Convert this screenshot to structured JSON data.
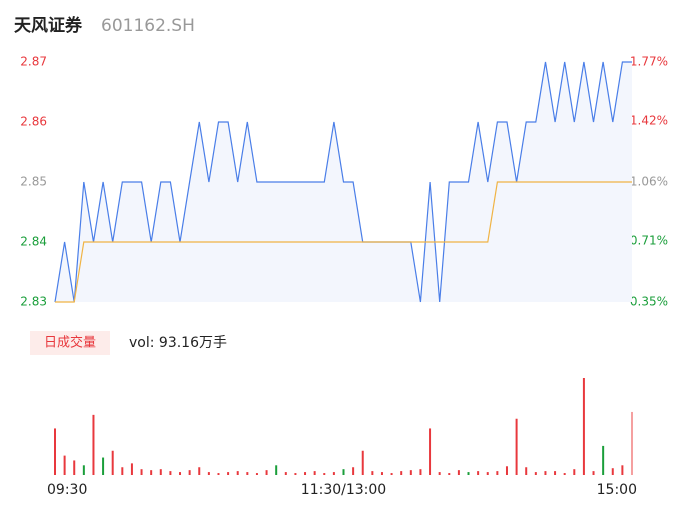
{
  "chart_data": [
    {
      "type": "line",
      "title": "天风证券",
      "subtitle": "601162.SH",
      "x": [
        0,
        4,
        8,
        12,
        16,
        20,
        24,
        28,
        32,
        36,
        40,
        44,
        48,
        52,
        56,
        60,
        64,
        68,
        72,
        76,
        80,
        84,
        88,
        92,
        96,
        100,
        104,
        108,
        112,
        116,
        120,
        124,
        128,
        132,
        136,
        140,
        144,
        148,
        152,
        156,
        160,
        164,
        168,
        172,
        176,
        180,
        184,
        188,
        192,
        196,
        200,
        204,
        208,
        212,
        216,
        220,
        224,
        228,
        232,
        236,
        240
      ],
      "series": [
        {
          "color": "#4a7ee8",
          "values": [
            2.83,
            2.84,
            2.83,
            2.85,
            2.84,
            2.85,
            2.84,
            2.85,
            2.85,
            2.85,
            2.84,
            2.85,
            2.85,
            2.84,
            2.85,
            2.86,
            2.85,
            2.86,
            2.86,
            2.85,
            2.86,
            2.85,
            2.85,
            2.85,
            2.85,
            2.85,
            2.85,
            2.85,
            2.85,
            2.86,
            2.85,
            2.85,
            2.84,
            2.84,
            2.84,
            2.84,
            2.84,
            2.84,
            2.83,
            2.85,
            2.83,
            2.85,
            2.85,
            2.85,
            2.86,
            2.85,
            2.86,
            2.86,
            2.85,
            2.86,
            2.86,
            2.87,
            2.86,
            2.87,
            2.86,
            2.87,
            2.86,
            2.87,
            2.86,
            2.87,
            2.87
          ]
        },
        {
          "color": "#f0b445",
          "values": [
            2.83,
            2.83,
            2.83,
            2.84,
            2.84,
            2.84,
            2.84,
            2.84,
            2.84,
            2.84,
            2.84,
            2.84,
            2.84,
            2.84,
            2.84,
            2.84,
            2.84,
            2.84,
            2.84,
            2.84,
            2.84,
            2.84,
            2.84,
            2.84,
            2.84,
            2.84,
            2.84,
            2.84,
            2.84,
            2.84,
            2.84,
            2.84,
            2.84,
            2.84,
            2.84,
            2.84,
            2.84,
            2.84,
            2.84,
            2.84,
            2.84,
            2.84,
            2.84,
            2.84,
            2.84,
            2.84,
            2.85,
            2.85,
            2.85,
            2.85,
            2.85,
            2.85,
            2.85,
            2.85,
            2.85,
            2.85,
            2.85,
            2.85,
            2.85,
            2.85,
            2.85
          ]
        }
      ],
      "fill": "#f3f6fd",
      "xlim": [
        0,
        240
      ],
      "ylim": [
        2.83,
        2.87
      ],
      "yticks": [
        2.83,
        2.84,
        2.85,
        2.86,
        2.87
      ],
      "ytick_colors": [
        "#1a9e3a",
        "#1a9e3a",
        "#999999",
        "#e8383d",
        "#e8383d"
      ],
      "y2lim": [
        0.35,
        1.77
      ],
      "y2ticks": [
        {
          "value": 0.35,
          "label": "0.35%"
        },
        {
          "value": 0.71,
          "label": "0.71%"
        },
        {
          "value": 1.06,
          "label": "1.06%"
        },
        {
          "value": 1.42,
          "label": "1.42%"
        },
        {
          "value": 1.77,
          "label": "1.77%"
        }
      ]
    },
    {
      "type": "bar",
      "legend": "日成交量",
      "annotation": "vol: 93.16万手",
      "x": [
        0,
        4,
        8,
        12,
        16,
        20,
        24,
        28,
        32,
        36,
        40,
        44,
        48,
        52,
        56,
        60,
        64,
        68,
        72,
        76,
        80,
        84,
        88,
        92,
        96,
        100,
        104,
        108,
        112,
        116,
        120,
        124,
        128,
        132,
        136,
        140,
        144,
        148,
        152,
        156,
        160,
        164,
        168,
        172,
        176,
        180,
        184,
        188,
        192,
        196,
        200,
        204,
        208,
        212,
        216,
        220,
        224,
        228,
        232,
        236,
        240
      ],
      "values": [
        48,
        20,
        15,
        10,
        62,
        18,
        25,
        8,
        12,
        6,
        5,
        6,
        4,
        3,
        5,
        8,
        3,
        2,
        3,
        4,
        3,
        2,
        5,
        10,
        3,
        2,
        3,
        4,
        2,
        3,
        6,
        8,
        25,
        4,
        3,
        2,
        4,
        5,
        6,
        48,
        3,
        2,
        5,
        3,
        4,
        3,
        4,
        9,
        58,
        8,
        3,
        4,
        4,
        2,
        6,
        100,
        4,
        30,
        7,
        10,
        65
      ],
      "colors": [
        "#e8383d",
        "#e8383d",
        "#e8383d",
        "#1a9e3a",
        "#e8383d",
        "#1a9e3a",
        "#e8383d",
        "#e8383d",
        "#e8383d",
        "#e8383d",
        "#e8383d",
        "#e8383d",
        "#e8383d",
        "#e8383d",
        "#e8383d",
        "#e8383d",
        "#e8383d",
        "#e8383d",
        "#e8383d",
        "#e8383d",
        "#e8383d",
        "#e8383d",
        "#e8383d",
        "#1a9e3a",
        "#e8383d",
        "#e8383d",
        "#e8383d",
        "#e8383d",
        "#e8383d",
        "#e8383d",
        "#1a9e3a",
        "#e8383d",
        "#e8383d",
        "#e8383d",
        "#e8383d",
        "#e8383d",
        "#e8383d",
        "#e8383d",
        "#e8383d",
        "#e8383d",
        "#e8383d",
        "#e8383d",
        "#e8383d",
        "#1a9e3a",
        "#e8383d",
        "#e8383d",
        "#e8383d",
        "#e8383d",
        "#e8383d",
        "#e8383d",
        "#e8383d",
        "#e8383d",
        "#e8383d",
        "#e8383d",
        "#e8383d",
        "#e8383d",
        "#e8383d",
        "#1a9e3a",
        "#e8383d",
        "#e8383d",
        "#f5a0a0"
      ],
      "xlim": [
        0,
        240
      ],
      "ylim": [
        0,
        100
      ],
      "xticks": [
        {
          "value": 0,
          "label": "09:30"
        },
        {
          "value": 120,
          "label": "11:30/13:00"
        },
        {
          "value": 240,
          "label": "15:00"
        }
      ]
    }
  ]
}
